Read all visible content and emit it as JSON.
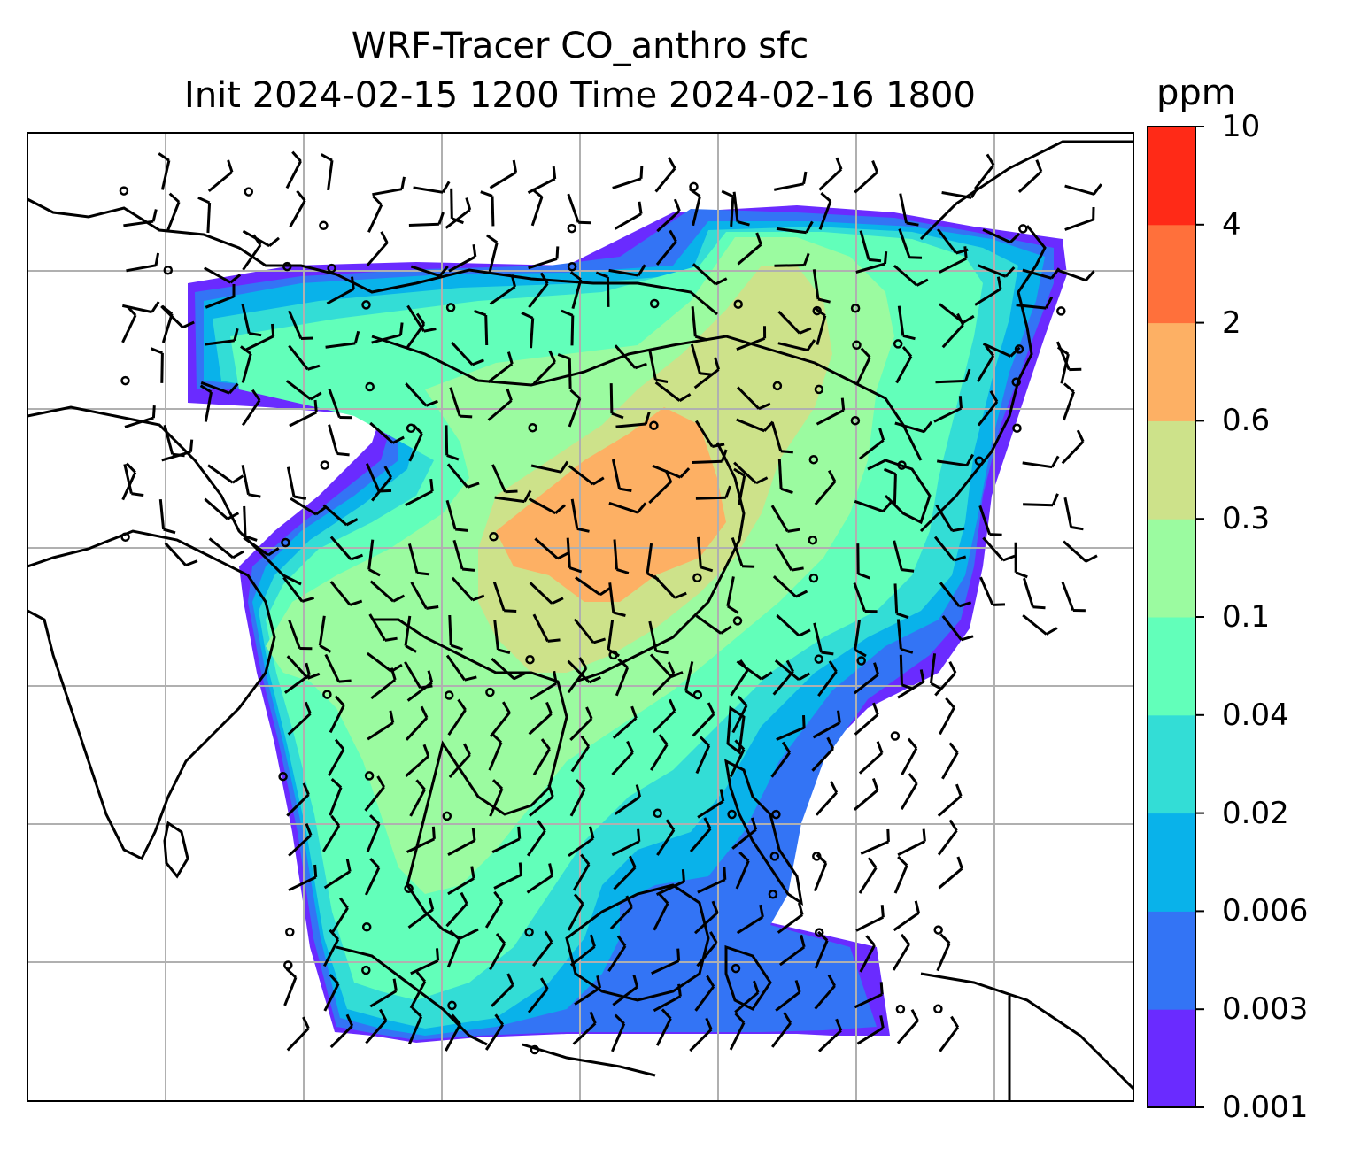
{
  "title": {
    "line1": "WRF-Tracer CO_anthro sfc",
    "line2": "Init 2024-02-15 1200 Time 2024-02-16 1800"
  },
  "colorbar": {
    "unit": "ppm",
    "levels": [
      "0.001",
      "0.003",
      "0.006",
      "0.02",
      "0.04",
      "0.1",
      "0.3",
      "0.6",
      "2",
      "4",
      "10"
    ],
    "colors": [
      "#6a2bff",
      "#3374f5",
      "#09b2ea",
      "#33ddd6",
      "#62ffba",
      "#9bfba0",
      "#cde28a",
      "#fdb064",
      "#ff703b",
      "#ff2a17"
    ]
  },
  "map": {
    "gridlines": true,
    "grid_color": "#b0b0b0",
    "coastline_color": "#000000",
    "feature_names": [
      "co-concentration-field",
      "coastlines",
      "wind-barbs",
      "calm-wind-circles",
      "gridlines"
    ]
  }
}
